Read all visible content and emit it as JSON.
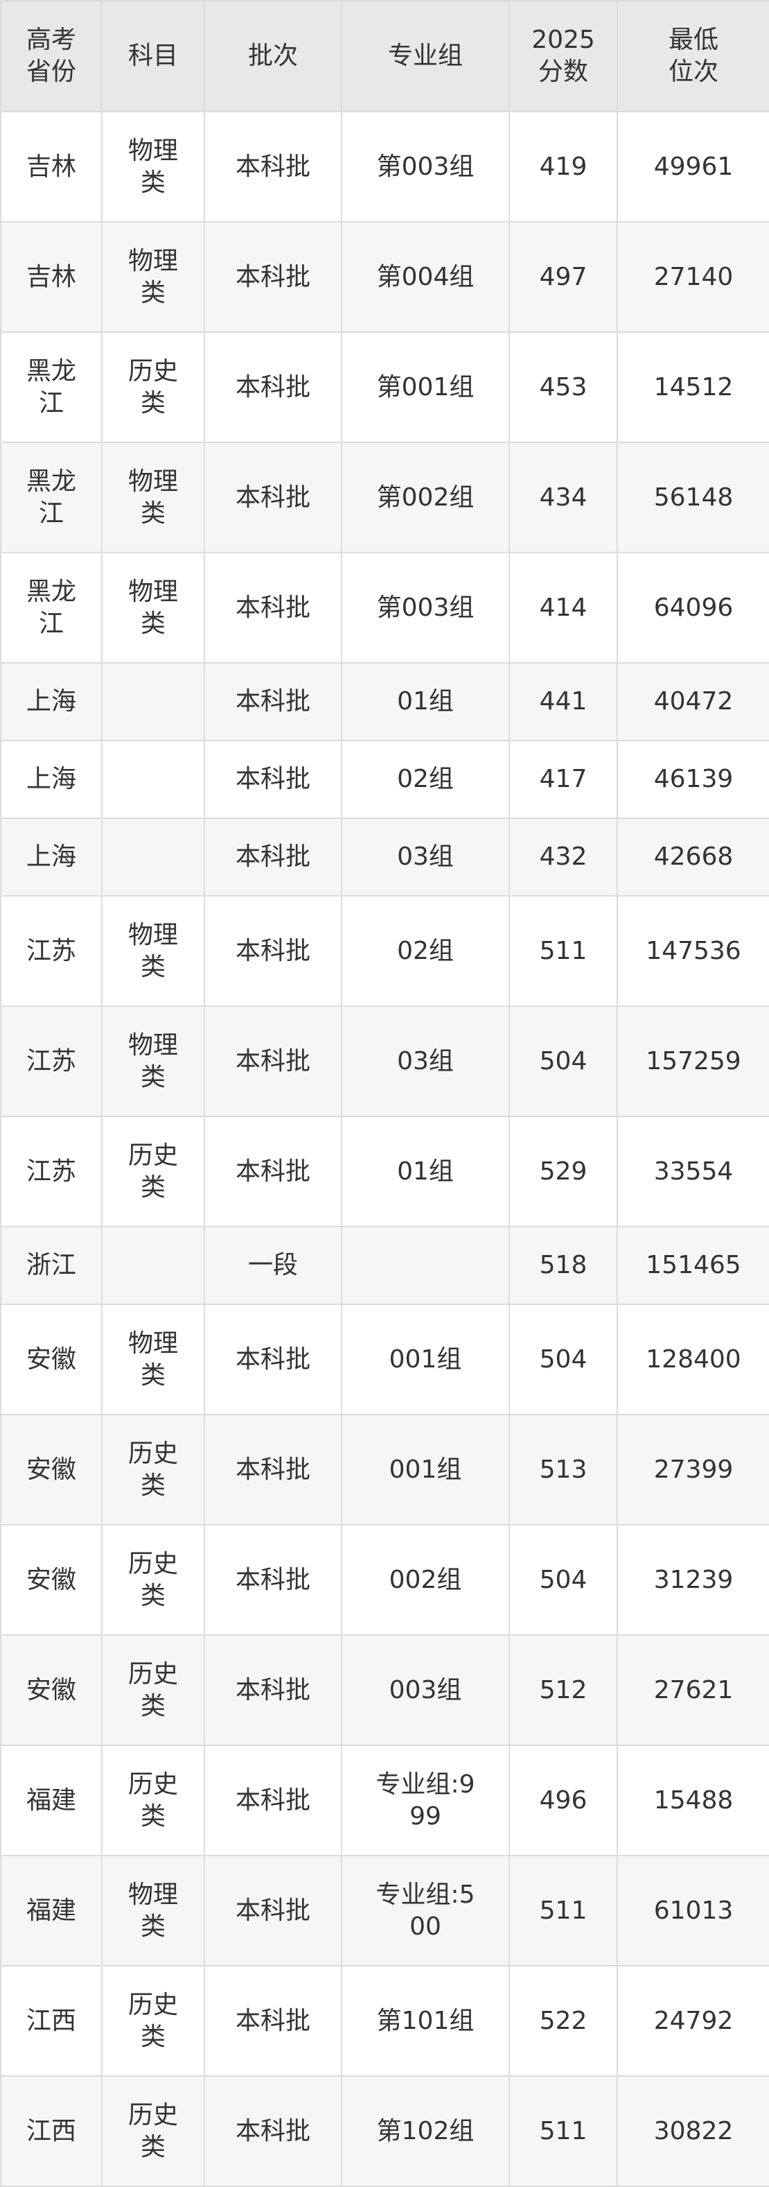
{
  "table": {
    "headers": [
      "高考省份",
      "科目",
      "批次",
      "专业组",
      "2025分数",
      "最低位次"
    ],
    "rows": [
      [
        "吉林",
        "物理类",
        "本科批",
        "第003组",
        "419",
        "49961"
      ],
      [
        "吉林",
        "物理类",
        "本科批",
        "第004组",
        "497",
        "27140"
      ],
      [
        "黑龙江",
        "历史类",
        "本科批",
        "第001组",
        "453",
        "14512"
      ],
      [
        "黑龙江",
        "物理类",
        "本科批",
        "第002组",
        "434",
        "56148"
      ],
      [
        "黑龙江",
        "物理类",
        "本科批",
        "第003组",
        "414",
        "64096"
      ],
      [
        "上海",
        "",
        "本科批",
        "01组",
        "441",
        "40472"
      ],
      [
        "上海",
        "",
        "本科批",
        "02组",
        "417",
        "46139"
      ],
      [
        "上海",
        "",
        "本科批",
        "03组",
        "432",
        "42668"
      ],
      [
        "江苏",
        "物理类",
        "本科批",
        "02组",
        "511",
        "147536"
      ],
      [
        "江苏",
        "物理类",
        "本科批",
        "03组",
        "504",
        "157259"
      ],
      [
        "江苏",
        "历史类",
        "本科批",
        "01组",
        "529",
        "33554"
      ],
      [
        "浙江",
        "",
        "一段",
        "",
        "518",
        "151465"
      ],
      [
        "安徽",
        "物理类",
        "本科批",
        "001组",
        "504",
        "128400"
      ],
      [
        "安徽",
        "历史类",
        "本科批",
        "001组",
        "513",
        "27399"
      ],
      [
        "安徽",
        "历史类",
        "本科批",
        "002组",
        "504",
        "31239"
      ],
      [
        "安徽",
        "历史类",
        "本科批",
        "003组",
        "512",
        "27621"
      ],
      [
        "福建",
        "历史类",
        "本科批",
        "专业组:999",
        "496",
        "15488"
      ],
      [
        "福建",
        "物理类",
        "本科批",
        "专业组:500",
        "511",
        "61013"
      ],
      [
        "江西",
        "历史类",
        "本科批",
        "第101组",
        "522",
        "24792"
      ],
      [
        "江西",
        "历史类",
        "本科批",
        "第102组",
        "511",
        "30822"
      ]
    ]
  }
}
